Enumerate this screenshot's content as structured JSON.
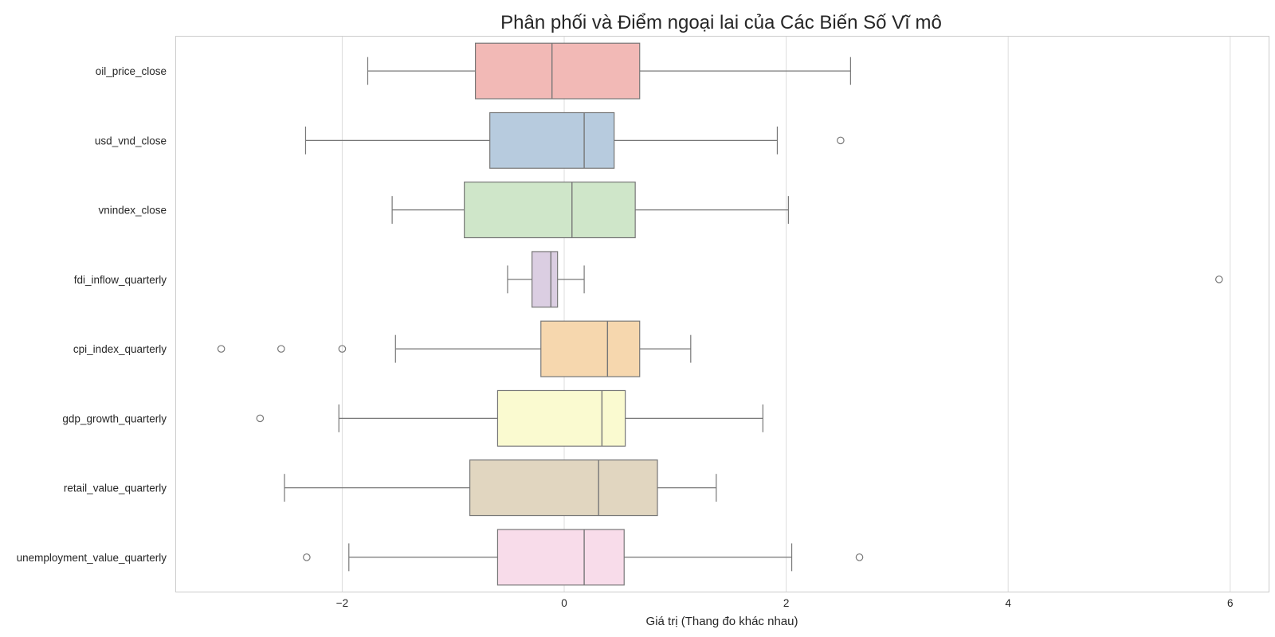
{
  "chart_data": {
    "type": "boxplot",
    "orientation": "horizontal",
    "title": "Phân phối và Điểm ngoại lai của Các Biến Số Vĩ mô",
    "xlabel": "Giá trị (Thang đo khác nhau)",
    "ylabel": "",
    "xlim": [
      -3.5,
      6.35
    ],
    "xticks": [
      -2,
      0,
      2,
      4,
      6
    ],
    "xtick_labels": [
      "−2",
      "0",
      "2",
      "4",
      "6"
    ],
    "grid": "vertical",
    "legend": "none",
    "series": [
      {
        "name": "oil_price_close",
        "color": "#f2b9b6",
        "whisker_low": -1.77,
        "q1": -0.8,
        "median": -0.11,
        "q3": 0.68,
        "whisker_high": 2.58,
        "outliers": []
      },
      {
        "name": "usd_vnd_close",
        "color": "#b7cbde",
        "whisker_low": -2.33,
        "q1": -0.67,
        "median": 0.18,
        "q3": 0.45,
        "whisker_high": 1.92,
        "outliers": [
          2.49
        ]
      },
      {
        "name": "vnindex_close",
        "color": "#cfe6c9",
        "whisker_low": -1.55,
        "q1": -0.9,
        "median": 0.07,
        "q3": 0.64,
        "whisker_high": 2.02,
        "outliers": []
      },
      {
        "name": "fdi_inflow_quarterly",
        "color": "#dbcee2",
        "whisker_low": -0.51,
        "q1": -0.29,
        "median": -0.12,
        "q3": -0.06,
        "whisker_high": 0.18,
        "outliers": [
          5.9
        ]
      },
      {
        "name": "cpi_index_quarterly",
        "color": "#f6d7ae",
        "whisker_low": -1.52,
        "q1": -0.21,
        "median": 0.39,
        "q3": 0.68,
        "whisker_high": 1.14,
        "outliers": [
          -3.09,
          -2.55,
          -2.0
        ]
      },
      {
        "name": "gdp_growth_quarterly",
        "color": "#fafad0",
        "whisker_low": -2.03,
        "q1": -0.6,
        "median": 0.34,
        "q3": 0.55,
        "whisker_high": 1.79,
        "outliers": [
          -2.74
        ]
      },
      {
        "name": "retail_value_quarterly",
        "color": "#e1d6c0",
        "whisker_low": -2.52,
        "q1": -0.85,
        "median": 0.31,
        "q3": 0.84,
        "whisker_high": 1.37,
        "outliers": []
      },
      {
        "name": "unemployment_value_quarterly",
        "color": "#f8dcea",
        "whisker_low": -1.94,
        "q1": -0.6,
        "median": 0.18,
        "q3": 0.54,
        "whisker_high": 2.05,
        "outliers": [
          -2.32,
          2.66
        ]
      }
    ]
  }
}
